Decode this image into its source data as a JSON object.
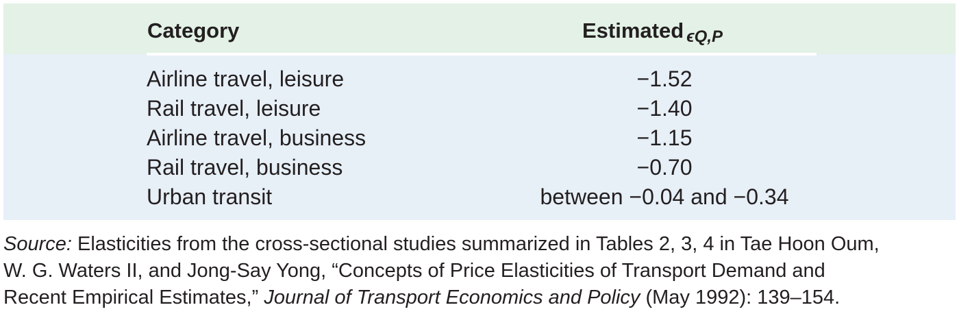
{
  "table": {
    "headers": {
      "category": "Category",
      "estimate_prefix": "Estimated",
      "estimate_symbol": "ϵQ,P"
    },
    "rows": [
      {
        "category": "Airline travel, leisure",
        "estimate": "−1.52"
      },
      {
        "category": "Rail travel, leisure",
        "estimate": "−1.40"
      },
      {
        "category": "Airline travel, business",
        "estimate": "−1.15"
      },
      {
        "category": "Rail travel, business",
        "estimate": "−0.70"
      },
      {
        "category": "Urban transit",
        "estimate": "between −0.04 and −0.34"
      }
    ]
  },
  "source": {
    "label": "Source:",
    "line1_rest": " Elasticities from the cross-sectional studies summarized in Tables 2, 3, 4 in Tae Hoon Oum,",
    "line2": "W. G. Waters II, and Jong-Say Yong, “Concepts of Price Elasticities of Transport Demand and",
    "line3_start": "Recent Empirical Estimates,” ",
    "journal": "Journal of Transport Economics and Policy",
    "line3_end": " (May 1992): 139–154."
  }
}
